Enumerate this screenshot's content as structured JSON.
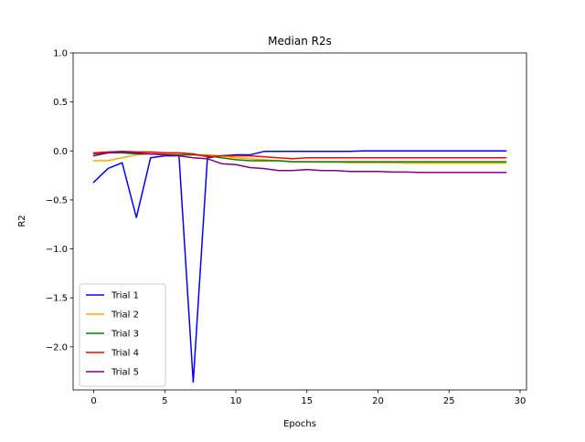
{
  "chart_data": {
    "type": "line",
    "title": "Median R2s",
    "xlabel": "Epochs",
    "ylabel": "R2",
    "xlim": [
      -1.45,
      30.45
    ],
    "ylim": [
      -2.44,
      1.0
    ],
    "xticks": [
      0,
      5,
      10,
      15,
      20,
      25,
      30
    ],
    "yticks": [
      1.0,
      0.5,
      0.0,
      -0.5,
      -1.0,
      -1.5,
      -2.0
    ],
    "xtick_labels": [
      "0",
      "5",
      "10",
      "15",
      "20",
      "25",
      "30"
    ],
    "ytick_labels": [
      "1.0",
      "0.5",
      "0.0",
      "−0.5",
      "−1.0",
      "−1.5",
      "−2.0"
    ],
    "grid": false,
    "legend_position": "lower-left",
    "x": [
      0,
      1,
      2,
      3,
      4,
      5,
      6,
      7,
      8,
      9,
      10,
      11,
      12,
      13,
      14,
      15,
      16,
      17,
      18,
      19,
      20,
      21,
      22,
      23,
      24,
      25,
      26,
      27,
      28,
      29
    ],
    "series": [
      {
        "name": "Trial 1",
        "color": "#0000ff",
        "values": [
          -0.32,
          -0.18,
          -0.12,
          -0.68,
          -0.07,
          -0.05,
          -0.05,
          -2.36,
          -0.07,
          -0.05,
          -0.04,
          -0.04,
          -0.005,
          -0.005,
          -0.005,
          -0.005,
          -0.005,
          -0.005,
          -0.005,
          0.0,
          0.0,
          0.0,
          0.0,
          0.0,
          0.0,
          0.0,
          0.0,
          0.0,
          0.0,
          0.0
        ]
      },
      {
        "name": "Trial 2",
        "color": "#ffa500",
        "values": [
          -0.1,
          -0.1,
          -0.07,
          -0.04,
          -0.03,
          -0.03,
          -0.04,
          -0.04,
          -0.04,
          -0.05,
          -0.07,
          -0.08,
          -0.09,
          -0.1,
          -0.11,
          -0.11,
          -0.115,
          -0.115,
          -0.12,
          -0.12,
          -0.12,
          -0.12,
          -0.125,
          -0.125,
          -0.125,
          -0.125,
          -0.125,
          -0.125,
          -0.125,
          -0.125
        ]
      },
      {
        "name": "Trial 3",
        "color": "#008000",
        "values": [
          -0.03,
          -0.02,
          -0.02,
          -0.03,
          -0.03,
          -0.04,
          -0.04,
          -0.04,
          -0.05,
          -0.07,
          -0.09,
          -0.1,
          -0.1,
          -0.1,
          -0.11,
          -0.11,
          -0.11,
          -0.11,
          -0.11,
          -0.11,
          -0.11,
          -0.11,
          -0.11,
          -0.11,
          -0.11,
          -0.11,
          -0.11,
          -0.11,
          -0.11,
          -0.11
        ]
      },
      {
        "name": "Trial 4",
        "color": "#ff0000",
        "values": [
          -0.02,
          -0.01,
          -0.005,
          -0.01,
          -0.01,
          -0.02,
          -0.02,
          -0.03,
          -0.06,
          -0.05,
          -0.05,
          -0.05,
          -0.06,
          -0.07,
          -0.08,
          -0.07,
          -0.07,
          -0.07,
          -0.07,
          -0.07,
          -0.07,
          -0.07,
          -0.07,
          -0.07,
          -0.07,
          -0.07,
          -0.07,
          -0.07,
          -0.07,
          -0.07
        ]
      },
      {
        "name": "Trial 5",
        "color": "#800080",
        "values": [
          -0.05,
          -0.02,
          -0.01,
          -0.02,
          -0.03,
          -0.04,
          -0.05,
          -0.07,
          -0.08,
          -0.13,
          -0.14,
          -0.17,
          -0.18,
          -0.2,
          -0.2,
          -0.19,
          -0.2,
          -0.2,
          -0.21,
          -0.21,
          -0.21,
          -0.215,
          -0.215,
          -0.22,
          -0.22,
          -0.22,
          -0.22,
          -0.22,
          -0.22,
          -0.22
        ]
      }
    ]
  }
}
